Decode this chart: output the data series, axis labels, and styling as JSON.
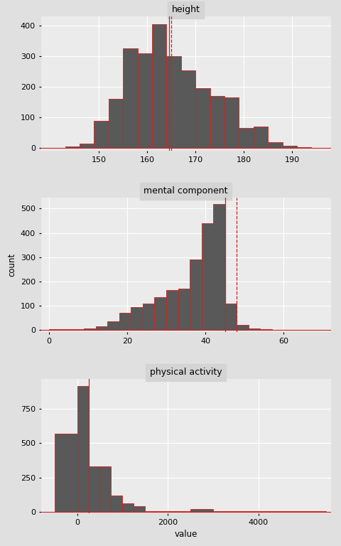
{
  "height": {
    "title": "height",
    "bins": [
      140,
      143,
      146,
      149,
      152,
      155,
      158,
      161,
      164,
      167,
      170,
      173,
      176,
      179,
      182,
      185,
      188,
      191,
      194
    ],
    "counts": [
      2,
      5,
      15,
      90,
      160,
      325,
      310,
      405,
      300,
      255,
      195,
      170,
      165,
      65,
      70,
      20,
      8,
      3
    ],
    "vline_solid": 164.5,
    "vline_dashed": 165.0,
    "xlim": [
      138,
      198
    ],
    "ylim": [
      -8,
      430
    ],
    "yticks": [
      0,
      100,
      200,
      300,
      400
    ],
    "xticks": [
      150,
      160,
      170,
      180,
      190
    ]
  },
  "mental": {
    "title": "mental component",
    "bins": [
      0,
      3,
      6,
      9,
      12,
      15,
      18,
      21,
      24,
      27,
      30,
      33,
      36,
      39,
      42,
      45,
      48,
      51,
      54,
      57,
      60,
      63,
      66,
      69
    ],
    "counts": [
      3,
      3,
      3,
      5,
      15,
      35,
      70,
      95,
      110,
      135,
      165,
      170,
      290,
      440,
      520,
      110,
      20,
      5,
      3,
      2,
      1,
      1,
      1
    ],
    "vline_solid": 45.0,
    "vline_dashed": 48.0,
    "xlim": [
      -2,
      72
    ],
    "ylim": [
      -8,
      545
    ],
    "yticks": [
      0,
      100,
      200,
      300,
      400,
      500
    ],
    "xticks": [
      0,
      20,
      40,
      60
    ]
  },
  "physical": {
    "title": "physical activity",
    "bins": [
      -500,
      0,
      250,
      500,
      750,
      1000,
      1250,
      1500,
      2000,
      2500,
      3000,
      3500,
      4000,
      4500,
      5000,
      5500
    ],
    "counts": [
      570,
      920,
      330,
      330,
      120,
      60,
      40,
      5,
      5,
      20,
      5,
      2,
      2,
      1,
      1
    ],
    "vline_solid": 250.0,
    "vline_dashed": null,
    "xlim": [
      -800,
      5600
    ],
    "ylim": [
      -12,
      970
    ],
    "yticks": [
      0,
      250,
      500,
      750
    ],
    "xticks": [
      0,
      2000,
      4000
    ]
  },
  "bar_color": "#595959",
  "bar_edge_color": "#cc2222",
  "vline_solid_color": "#cc2222",
  "vline_dashed_color": "#cc2222",
  "bg_color": "#ebebeb",
  "title_bg_color": "#d4d4d4",
  "grid_color": "#ffffff",
  "fig_bg_color": "#e0e0e0",
  "ylabel": "count",
  "xlabel": "value",
  "title_fontsize": 9,
  "label_fontsize": 8.5,
  "tick_fontsize": 8
}
